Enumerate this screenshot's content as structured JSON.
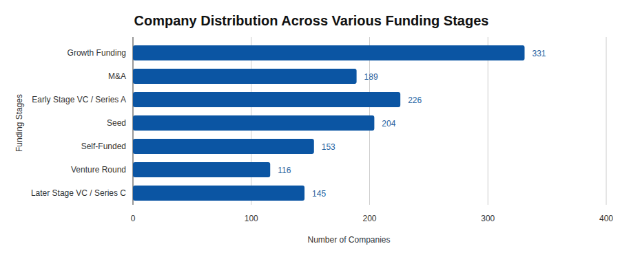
{
  "chart_data": {
    "type": "bar",
    "orientation": "horizontal",
    "title": "Company Distribution Across Various Funding Stages",
    "xlabel": "Number of Companies",
    "ylabel": "Funding Stages",
    "categories": [
      "Growth Funding",
      "M&A",
      "Early Stage VC / Series A",
      "Seed",
      "Self-Funded",
      "Venture Round",
      "Later Stage VC / Series C"
    ],
    "values": [
      331,
      189,
      226,
      204,
      153,
      116,
      145
    ],
    "color": "#0b55a3",
    "xlim": [
      0,
      400
    ],
    "xticks": [
      0,
      100,
      200,
      300,
      400
    ],
    "grid": true,
    "data_labels": true
  }
}
